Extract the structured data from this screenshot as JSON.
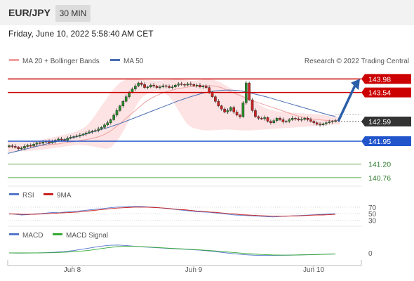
{
  "header": {
    "symbol": "EUR/JPY",
    "timeframe": "30 MIN"
  },
  "datetime": "Friday, June 10, 2022 5:58:40 AM CET",
  "legend": {
    "ma20": "MA 20 + Bollinger Bands",
    "ma50": "MA 50",
    "research": "Research © 2022 Trading Central",
    "rsi": "RSI",
    "rsi_ma": "9MA",
    "macd": "MACD",
    "macd_signal": "MACD Signal"
  },
  "colors": {
    "resistance": "#cc0000",
    "support": "#2255cc",
    "target_line": "#66aa55",
    "band_fill": "#fde0e0",
    "ma20": "#f2a0a0",
    "ma50": "#4a6fb5",
    "up_candle": "#2a8a2a",
    "down_candle": "#cc2222",
    "arrow": "#2a5ea8",
    "last_price": "#333333"
  },
  "chart_data": [
    {
      "type": "candlestick",
      "title": "",
      "x_ticks": [
        "Jun 8",
        "Jun 9",
        "Jun 10"
      ],
      "ylim": [
        140.55,
        144.15
      ],
      "levels": [
        {
          "name": "resistance-1",
          "value": "143.98",
          "kind": "resistance"
        },
        {
          "name": "resistance-2",
          "value": "143.54",
          "kind": "resistance"
        },
        {
          "name": "last",
          "value": "142.59",
          "kind": "last"
        },
        {
          "name": "support-1",
          "value": "141.95",
          "kind": "support"
        },
        {
          "name": "target-1",
          "value": "141.20",
          "kind": "target"
        },
        {
          "name": "target-2",
          "value": "140.76",
          "kind": "target"
        }
      ],
      "close": [
        141.8,
        141.78,
        141.75,
        141.7,
        141.72,
        141.78,
        141.82,
        141.8,
        141.85,
        141.9,
        141.88,
        141.92,
        141.95,
        141.9,
        141.93,
        141.98,
        142.02,
        142.0,
        141.98,
        142.05,
        142.08,
        142.1,
        142.12,
        142.15,
        142.18,
        142.22,
        142.25,
        142.28,
        142.3,
        142.35,
        142.4,
        142.48,
        142.55,
        142.65,
        142.8,
        142.95,
        143.1,
        143.25,
        143.4,
        143.55,
        143.65,
        143.75,
        143.85,
        143.8,
        143.7,
        143.72,
        143.78,
        143.75,
        143.7,
        143.72,
        143.76,
        143.74,
        143.7,
        143.72,
        143.78,
        143.82,
        143.8,
        143.78,
        143.82,
        143.8,
        143.76,
        143.78,
        143.72,
        143.75,
        143.7,
        143.55,
        143.4,
        143.25,
        143.1,
        143.0,
        142.9,
        142.95,
        143.05,
        142.9,
        142.8,
        142.75,
        143.2,
        143.85,
        143.3,
        142.95,
        142.75,
        142.7,
        142.68,
        142.72,
        142.6,
        142.55,
        142.62,
        142.7,
        142.65,
        142.58,
        142.6,
        142.65,
        142.7,
        142.68,
        142.64,
        142.66,
        142.7,
        142.65,
        142.6,
        142.55,
        142.5,
        142.48,
        142.52,
        142.55,
        142.58,
        142.6,
        142.62
      ],
      "ma20_series": [
        141.75,
        141.76,
        141.76,
        141.76,
        141.76,
        141.77,
        141.78,
        141.78,
        141.79,
        141.8,
        141.81,
        141.82,
        141.84,
        141.85,
        141.86,
        141.88,
        141.9,
        141.92,
        141.93,
        141.95,
        141.97,
        141.99,
        142.01,
        142.03,
        142.06,
        142.09,
        142.13,
        142.18,
        142.25,
        142.33,
        142.42,
        142.52,
        142.62,
        142.72,
        142.82,
        142.92,
        143.02,
        143.12,
        143.22,
        143.3,
        143.37,
        143.43,
        143.48,
        143.53,
        143.57,
        143.6,
        143.63,
        143.66,
        143.68,
        143.7,
        143.72,
        143.73,
        143.74,
        143.75,
        143.76,
        143.76,
        143.76,
        143.75,
        143.73,
        143.7,
        143.65,
        143.6,
        143.55,
        143.5,
        143.45,
        143.4,
        143.35,
        143.3,
        143.26,
        143.22,
        143.18,
        143.14,
        143.1,
        143.06,
        143.02,
        142.98,
        142.94,
        142.9,
        142.86,
        142.82,
        142.78,
        142.75,
        142.72,
        142.7,
        142.68,
        142.66,
        142.65,
        142.64,
        142.63,
        142.62,
        142.62,
        142.62,
        142.62
      ],
      "bb_upper": [
        141.95,
        141.93,
        141.92,
        141.92,
        141.93,
        141.94,
        141.95,
        141.97,
        142.0,
        142.03,
        142.06,
        142.09,
        142.12,
        142.15,
        142.18,
        142.22,
        142.26,
        142.32,
        142.4,
        142.52,
        142.7,
        142.9,
        143.1,
        143.3,
        143.5,
        143.68,
        143.82,
        143.92,
        143.96,
        143.97,
        143.97,
        143.96,
        143.95,
        143.94,
        143.93,
        143.92,
        143.93,
        143.94,
        143.95,
        143.96,
        143.97,
        143.96,
        143.94,
        143.92,
        143.92,
        143.94,
        143.97,
        143.98,
        143.96,
        143.92,
        143.86,
        143.78,
        143.7,
        143.62,
        143.54,
        143.46,
        143.38,
        143.3,
        143.22,
        143.14,
        143.06,
        143.0,
        142.96,
        142.93,
        142.91,
        142.9,
        142.89,
        142.88,
        142.87,
        142.86,
        142.85,
        142.84,
        142.83,
        142.82,
        142.8,
        142.78,
        142.76,
        142.75,
        142.75
      ],
      "bb_lower": [
        141.6,
        141.6,
        141.61,
        141.62,
        141.63,
        141.64,
        141.65,
        141.66,
        141.68,
        141.7,
        141.72,
        141.74,
        141.76,
        141.78,
        141.8,
        141.82,
        141.83,
        141.82,
        141.8,
        141.78,
        141.75,
        141.72,
        141.7,
        141.75,
        141.9,
        142.1,
        142.35,
        142.65,
        142.95,
        143.2,
        143.4,
        143.5,
        143.55,
        143.58,
        143.56,
        143.5,
        143.4,
        143.2,
        142.95,
        142.7,
        142.5,
        142.4,
        142.35,
        142.32,
        142.3,
        142.3,
        142.31,
        142.32,
        142.33,
        142.33,
        142.32,
        142.31,
        142.3,
        142.3,
        142.3,
        142.31,
        142.32,
        142.33,
        142.34,
        142.35,
        142.36,
        142.37,
        142.38,
        142.39,
        142.4,
        142.41,
        142.42,
        142.43,
        142.44,
        142.45,
        142.46,
        142.47,
        142.48,
        142.49,
        142.5
      ],
      "ma50_series": [
        141.55,
        141.6,
        141.65,
        141.7,
        141.75,
        141.8,
        141.85,
        141.9,
        141.95,
        142.0,
        142.05,
        142.1,
        142.16,
        142.22,
        142.28,
        142.34,
        142.4,
        142.47,
        142.54,
        142.62,
        142.7,
        142.78,
        142.86,
        142.94,
        143.02,
        143.1,
        143.18,
        143.26,
        143.33,
        143.4,
        143.46,
        143.52,
        143.56,
        143.59,
        143.61,
        143.62,
        143.61,
        143.59,
        143.55,
        143.5,
        143.45,
        143.4,
        143.34,
        143.28,
        143.22,
        143.16,
        143.1,
        143.04,
        142.98,
        142.92,
        142.86,
        142.8,
        142.76
      ]
    },
    {
      "type": "line",
      "name": "rsi-panel",
      "levels": [
        "70",
        "50",
        "30"
      ],
      "ylim": [
        20,
        85
      ],
      "series": [
        {
          "name": "RSI",
          "values": [
            50,
            48,
            46,
            47,
            49,
            50,
            52,
            54,
            53,
            55,
            56,
            58,
            60,
            62,
            64,
            66,
            68,
            70,
            71,
            72,
            73,
            72,
            71,
            70,
            68,
            66,
            64,
            62,
            60,
            58,
            56,
            55,
            54,
            52,
            50,
            48,
            46,
            45,
            44,
            43,
            42,
            41,
            40,
            41,
            42,
            43,
            44,
            45,
            46,
            47,
            48,
            49,
            50
          ]
        },
        {
          "name": "9MA",
          "values": [
            49,
            49,
            48,
            48,
            48,
            49,
            50,
            51,
            52,
            53,
            54,
            55,
            57,
            59,
            61,
            63,
            65,
            67,
            68,
            69,
            70,
            70,
            70,
            69,
            68,
            67,
            65,
            63,
            62,
            60,
            58,
            57,
            55,
            54,
            52,
            50,
            49,
            47,
            46,
            45,
            44,
            43,
            42,
            42,
            42,
            43,
            43,
            44,
            45,
            46,
            46,
            47,
            48
          ]
        }
      ]
    },
    {
      "type": "line",
      "name": "macd-panel",
      "levels": [
        "0"
      ],
      "ylim": [
        -1,
        1
      ],
      "series": [
        {
          "name": "MACD",
          "values": [
            0.0,
            -0.02,
            -0.01,
            0.0,
            0.02,
            0.05,
            0.1,
            0.18,
            0.28,
            0.4,
            0.52,
            0.6,
            0.62,
            0.58,
            0.52,
            0.46,
            0.42,
            0.38,
            0.34,
            0.3,
            0.26,
            0.22,
            0.16,
            0.08,
            0.0,
            -0.08,
            -0.14,
            -0.18,
            -0.2,
            -0.2,
            -0.19,
            -0.18,
            -0.16,
            -0.14,
            -0.12,
            -0.1,
            -0.08
          ]
        },
        {
          "name": "MACD Signal",
          "values": [
            0.0,
            0.0,
            0.0,
            0.0,
            0.01,
            0.02,
            0.05,
            0.09,
            0.14,
            0.22,
            0.32,
            0.42,
            0.5,
            0.53,
            0.52,
            0.48,
            0.44,
            0.4,
            0.36,
            0.32,
            0.28,
            0.24,
            0.2,
            0.14,
            0.08,
            0.02,
            -0.04,
            -0.09,
            -0.13,
            -0.16,
            -0.17,
            -0.17,
            -0.16,
            -0.15,
            -0.13,
            -0.11,
            -0.09
          ]
        }
      ]
    }
  ]
}
